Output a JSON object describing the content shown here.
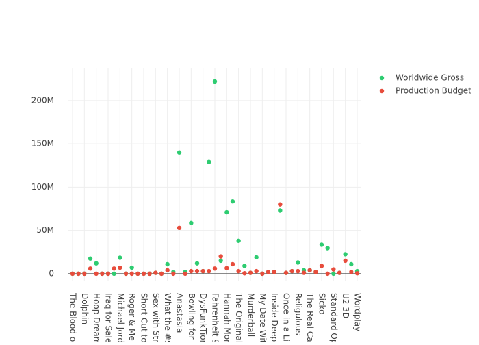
{
  "chart_data": {
    "type": "scatter",
    "categories": [
      "The Blood of",
      null,
      "Dolphin",
      null,
      "Hoop Dream",
      null,
      "Iraq for Sale:",
      null,
      "Michael Jorda",
      null,
      "Roger & Me",
      null,
      "Short Cut to N",
      null,
      "Sex with Stra",
      null,
      "What the #$*!",
      null,
      "Anastasia",
      null,
      "Bowling for C",
      null,
      "DysFunkTion",
      null,
      "Fahrenheit 9/",
      null,
      "Hannah Mon",
      null,
      "The Original K",
      null,
      "Murderball",
      null,
      "My Date With",
      null,
      "Inside Deep T",
      null,
      "Once in a Life",
      null,
      "Religulous",
      null,
      "The Real Can",
      null,
      "Sicko",
      null,
      "Standard Op",
      null,
      "U2 3D",
      null,
      "Wordplay"
    ],
    "series": [
      {
        "name": "Worldwide Gross",
        "color": "#2ecc71",
        "values": [
          0,
          0,
          0,
          17500000,
          12000000,
          0,
          0,
          0,
          18500000,
          0,
          7000000,
          0,
          0,
          0,
          1000000,
          0,
          11000000,
          2000000,
          140000000,
          2000000,
          58500000,
          12000000,
          3000000,
          129000000,
          222000000,
          15000000,
          71000000,
          83500000,
          38000000,
          9000000,
          1000000,
          19000000,
          0,
          2000000,
          2000000,
          73000000,
          1000000,
          3000000,
          13000000,
          4000000,
          4000000,
          2000000,
          33500000,
          29500000,
          0,
          1000000,
          22500000,
          11000000,
          3000000
        ]
      },
      {
        "name": "Production Budget",
        "color": "#e74c3c",
        "values": [
          0,
          0,
          0,
          6000000,
          0,
          0,
          0,
          6000000,
          7000000,
          0,
          0,
          0,
          0,
          0,
          1000000,
          0,
          4000000,
          0,
          53000000,
          0,
          3000000,
          3000000,
          3000000,
          3000000,
          6000000,
          20000000,
          6500000,
          11000000,
          3000000,
          500000,
          1000000,
          3000000,
          0,
          2000000,
          2000000,
          80000000,
          1000000,
          3000000,
          3000000,
          1000000,
          4000000,
          2000000,
          9000000,
          0,
          5000000,
          1000000,
          15000000,
          2000000,
          500000
        ]
      }
    ],
    "ylim": [
      -8000000,
      237000000
    ],
    "yticks": [
      {
        "value": 0,
        "label": "0"
      },
      {
        "value": 50000000,
        "label": "50M"
      },
      {
        "value": 100000000,
        "label": "100M"
      },
      {
        "value": 150000000,
        "label": "150M"
      },
      {
        "value": 200000000,
        "label": "200M"
      }
    ],
    "grid": true
  }
}
